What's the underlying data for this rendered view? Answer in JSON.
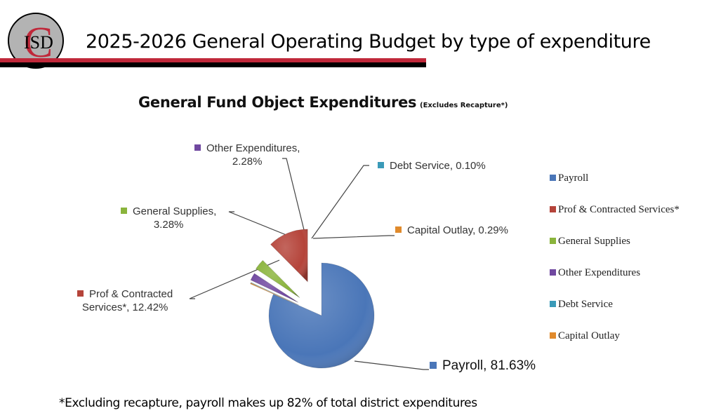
{
  "header": {
    "logo_text": "ISD",
    "logo_initial": "C",
    "title": "2025-2026 General Operating Budget by type of expenditure"
  },
  "colors": {
    "brand_red": "#c0283a",
    "brand_black": "#000000",
    "logo_gray": "#b3b3b3"
  },
  "footnote": "*Excluding recapture, payroll makes up 82% of total district expenditures",
  "chart_data": {
    "type": "pie",
    "title": "General Fund Object Expenditures",
    "subtitle": "(Excludes Recapture*)",
    "categories": [
      "Payroll",
      "Prof & Contracted Services*",
      "General Supplies",
      "Other Expenditures",
      "Debt Service",
      "Capital Outlay"
    ],
    "values": [
      81.63,
      12.42,
      3.28,
      2.28,
      0.1,
      0.29
    ],
    "unit": "%",
    "colors": [
      "#4a76b8",
      "#b5443a",
      "#8ab43c",
      "#7048a0",
      "#3a9ab8",
      "#e08a2c"
    ],
    "data_labels": [
      {
        "line1": "Payroll, 81.63%",
        "line2": ""
      },
      {
        "line1": "Prof & Contracted",
        "line2": "Services*, 12.42%"
      },
      {
        "line1": "General Supplies,",
        "line2": "3.28%"
      },
      {
        "line1": "Other Expenditures,",
        "line2": "2.28%"
      },
      {
        "line1": "Debt Service, 0.10%",
        "line2": ""
      },
      {
        "line1": "Capital Outlay, 0.29%",
        "line2": ""
      }
    ],
    "legend": {
      "placement": "right",
      "entries": [
        "Payroll",
        "Prof & Contracted Services*",
        "General Supplies",
        "Other Expenditures",
        "Debt Service",
        "Capital Outlay"
      ]
    }
  }
}
